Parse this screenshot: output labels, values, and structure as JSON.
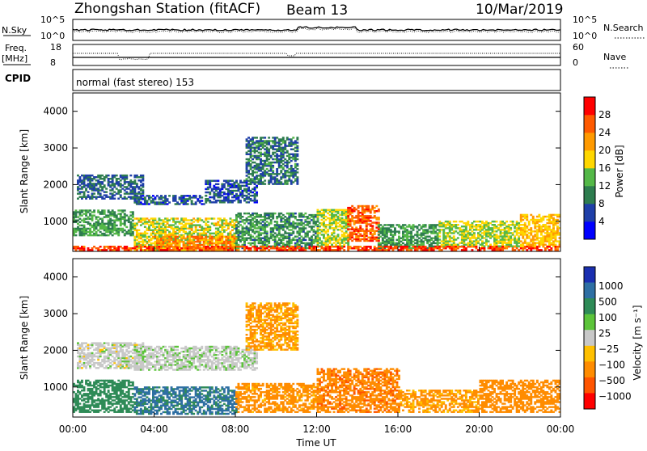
{
  "header": {
    "station": "Zhongshan Station (fitACF)",
    "beam": "Beam 13",
    "date": "10/Mar/2019"
  },
  "mini_panels": {
    "nsky_label": "N.Sky",
    "nsearch_label": "N.Search",
    "nsky_tick_top": "10^5",
    "nsky_tick_bottom": "10^0",
    "freq_label_1": "Freq.",
    "freq_label_2": "[MHz]",
    "freq_tick_top": "18",
    "freq_tick_bottom": "8",
    "nave_label": "Nave",
    "nave_tick_top": "60",
    "nave_tick_bottom": "0",
    "cpid_label": "CPID",
    "cpid_value": "normal (fast stereo) 153"
  },
  "axes": {
    "ylabel": "Slant Range [km]",
    "xlabel": "Time UT",
    "yticks": [
      "4000",
      "3000",
      "2000",
      "1000"
    ],
    "xticks": [
      "00:00",
      "04:00",
      "08:00",
      "12:00",
      "16:00",
      "20:00",
      "00:00"
    ]
  },
  "colorbars": {
    "power": {
      "title": "Power [dB]",
      "ticks": [
        "28",
        "24",
        "20",
        "16",
        "12",
        "8",
        "4"
      ],
      "colors": [
        "#0000ff",
        "#1f3fa8",
        "#2e7d4f",
        "#54b848",
        "#ffd700",
        "#ff9a00",
        "#ff5a00",
        "#ff0000"
      ]
    },
    "velocity": {
      "title": "Velocity [m s⁻¹]",
      "ticks": [
        "1000",
        "500",
        "100",
        "25",
        "−25",
        "−100",
        "−500",
        "−1000"
      ],
      "colors": [
        "#1a2fb0",
        "#2e6fa3",
        "#2e8b57",
        "#5cc43a",
        "#c8c8c8",
        "#ffc000",
        "#ff8c00",
        "#ff5500",
        "#ff0000"
      ]
    }
  },
  "chart_data": {
    "type": "heatmap",
    "x_range": [
      "00:00",
      "00:00"
    ],
    "ylim": [
      180,
      4500
    ],
    "power_scale": [
      0,
      32
    ],
    "velocity_scale": [
      -1000,
      1000
    ],
    "power_regions": [
      {
        "t0": 0.2,
        "t1": 3.5,
        "r0": 1600,
        "r1": 2250,
        "p": 8
      },
      {
        "t0": 3.0,
        "t1": 6.5,
        "r0": 1450,
        "r1": 1700,
        "p": 7
      },
      {
        "t0": 6.5,
        "t1": 9.0,
        "r0": 1500,
        "r1": 2100,
        "p": 7
      },
      {
        "t0": 8.5,
        "t1": 11.0,
        "r0": 2000,
        "r1": 3300,
        "p": 9
      },
      {
        "t0": 0.0,
        "t1": 3.0,
        "r0": 600,
        "r1": 1300,
        "p": 12
      },
      {
        "t0": 3.0,
        "t1": 8.0,
        "r0": 200,
        "r1": 1100,
        "p": 17
      },
      {
        "t0": 4.0,
        "t1": 8.0,
        "r0": 200,
        "r1": 600,
        "p": 23
      },
      {
        "t0": 8.0,
        "t1": 12.0,
        "r0": 250,
        "r1": 1200,
        "p": 11
      },
      {
        "t0": 12.0,
        "t1": 13.5,
        "r0": 300,
        "r1": 1300,
        "p": 16
      },
      {
        "t0": 13.5,
        "t1": 15.0,
        "r0": 450,
        "r1": 1400,
        "p": 26
      },
      {
        "t0": 15.0,
        "t1": 18.0,
        "r0": 250,
        "r1": 900,
        "p": 12
      },
      {
        "t0": 18.0,
        "t1": 22.0,
        "r0": 300,
        "r1": 1000,
        "p": 16
      },
      {
        "t0": 22.0,
        "t1": 24.0,
        "r0": 300,
        "r1": 1200,
        "p": 20
      },
      {
        "t0": 0.0,
        "t1": 24.0,
        "r0": 200,
        "r1": 320,
        "p": 27
      }
    ],
    "velocity_regions": [
      {
        "t0": 0.2,
        "t1": 3.5,
        "r0": 1500,
        "r1": 2200,
        "v": 0
      },
      {
        "t0": 3.0,
        "t1": 9.0,
        "r0": 1450,
        "r1": 2100,
        "v": 10
      },
      {
        "t0": 8.5,
        "t1": 11.0,
        "r0": 2000,
        "r1": 3300,
        "v": -120
      },
      {
        "t0": 0.0,
        "t1": 3.0,
        "r0": 300,
        "r1": 1200,
        "v": 200
      },
      {
        "t0": 3.0,
        "t1": 8.0,
        "r0": 250,
        "r1": 1000,
        "v": 600
      },
      {
        "t0": 8.0,
        "t1": 12.0,
        "r0": 300,
        "r1": 1100,
        "v": -150
      },
      {
        "t0": 12.0,
        "t1": 16.0,
        "r0": 300,
        "r1": 1500,
        "v": -400
      },
      {
        "t0": 16.0,
        "t1": 20.0,
        "r0": 300,
        "r1": 900,
        "v": -120
      },
      {
        "t0": 20.0,
        "t1": 24.0,
        "r0": 300,
        "r1": 1200,
        "v": -200
      }
    ]
  }
}
